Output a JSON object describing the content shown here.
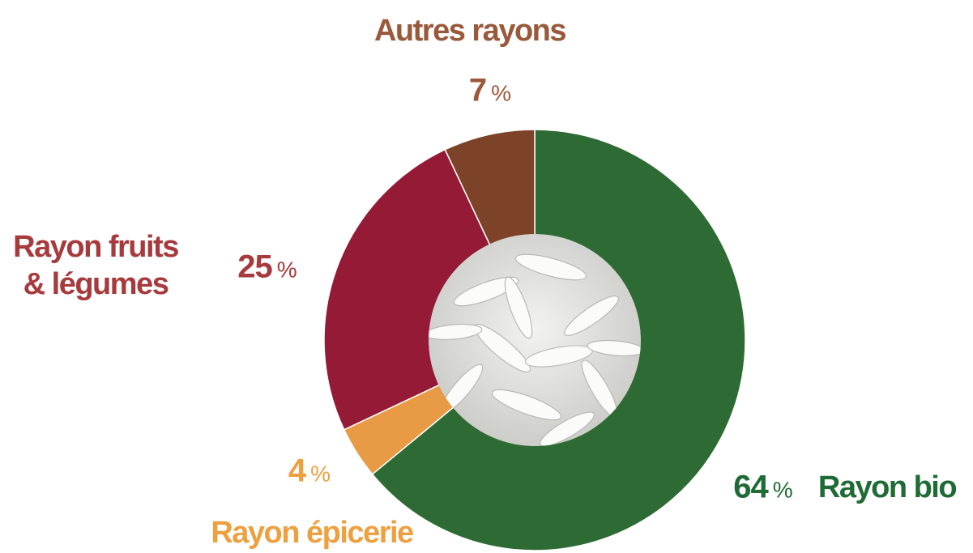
{
  "chart_data": {
    "type": "donut",
    "categories": [
      "Rayon bio",
      "Rayon épicerie",
      "Rayon fruits & légumes",
      "Autres rayons"
    ],
    "values": [
      64,
      4,
      25,
      7
    ],
    "value_suffix": "%",
    "colors": [
      "#2e6b34",
      "#e89a45",
      "#951a36",
      "#7c4328"
    ],
    "label_colors": [
      "#1f6b35",
      "#eea040",
      "#a63a3c",
      "#99593a"
    ]
  }
}
